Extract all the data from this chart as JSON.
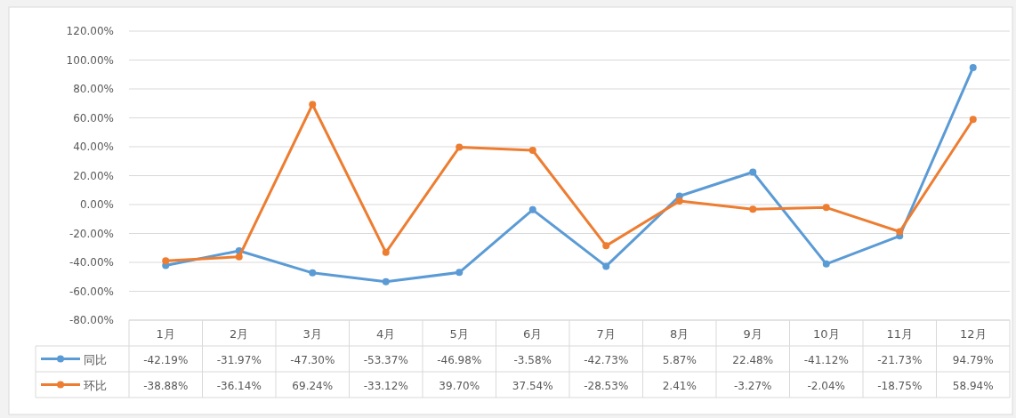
{
  "chart_data": {
    "type": "line",
    "categories": [
      "1月",
      "2月",
      "3月",
      "4月",
      "5月",
      "6月",
      "7月",
      "8月",
      "9月",
      "10月",
      "11月",
      "12月"
    ],
    "series": [
      {
        "name": "同比",
        "color": "#5b9bd5",
        "values": [
          -42.19,
          -31.97,
          -47.3,
          -53.37,
          -46.98,
          -3.58,
          -42.73,
          5.87,
          22.48,
          -41.12,
          -21.73,
          94.79
        ],
        "value_labels": [
          "-42.19%",
          "-31.97%",
          "-47.30%",
          "-53.37%",
          "-46.98%",
          "-3.58%",
          "-42.73%",
          "5.87%",
          "22.48%",
          "-41.12%",
          "-21.73%",
          "94.79%"
        ]
      },
      {
        "name": "环比",
        "color": "#ed7d31",
        "values": [
          -38.88,
          -36.14,
          69.24,
          -33.12,
          39.7,
          37.54,
          -28.53,
          2.41,
          -3.27,
          -2.04,
          -18.75,
          58.94
        ],
        "value_labels": [
          "-38.88%",
          "-36.14%",
          "69.24%",
          "-33.12%",
          "39.70%",
          "37.54%",
          "-28.53%",
          "2.41%",
          "-3.27%",
          "-2.04%",
          "-18.75%",
          "58.94%"
        ]
      }
    ],
    "ylim": [
      -80,
      120
    ],
    "yticks": [
      {
        "value": -80,
        "label": "-80.00%"
      },
      {
        "value": -60,
        "label": "-60.00%"
      },
      {
        "value": -40,
        "label": "-40.00%"
      },
      {
        "value": -20,
        "label": "-20.00%"
      },
      {
        "value": 0,
        "label": "0.00%"
      },
      {
        "value": 20,
        "label": "20.00%"
      },
      {
        "value": 40,
        "label": "40.00%"
      },
      {
        "value": 60,
        "label": "60.00%"
      },
      {
        "value": 80,
        "label": "80.00%"
      },
      {
        "value": 100,
        "label": "100.00%"
      },
      {
        "value": 120,
        "label": "120.00%"
      }
    ],
    "grid": "y",
    "legend": "bottom",
    "marker": "circle",
    "line_style": "solid"
  }
}
